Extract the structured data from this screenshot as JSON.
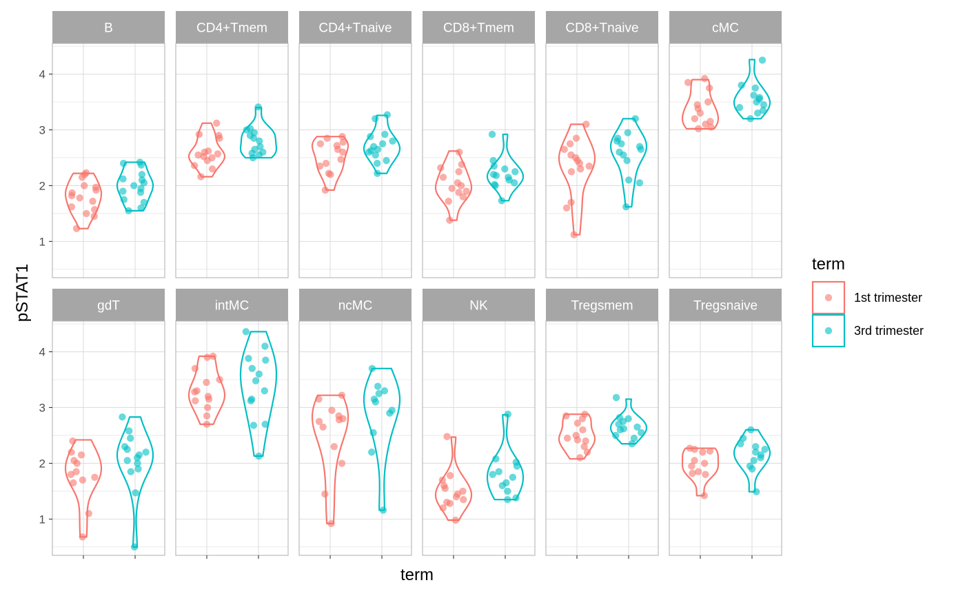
{
  "chart_data": {
    "type": "violin",
    "facet_layout": {
      "rows": 2,
      "cols": 6
    },
    "xlabel": "term",
    "ylabel": "pSTAT1",
    "ylim": [
      0.35,
      4.55
    ],
    "y_ticks": [
      1,
      2,
      3,
      4
    ],
    "grid": true,
    "legend": {
      "title": "term",
      "position": "right",
      "entries": [
        {
          "label": "1st trimester",
          "color": "#F8766D"
        },
        {
          "label": "3rd trimester",
          "color": "#00BFC4"
        }
      ]
    },
    "colors": {
      "first": "#F8766D",
      "third": "#00BFC4",
      "strip": "#A6A6A6",
      "grid": "#DEDEDE",
      "border": "#B3B3B3"
    },
    "panels": [
      {
        "name": "B",
        "first": {
          "range": [
            1.23,
            2.22
          ],
          "points": [
            1.23,
            1.45,
            1.5,
            1.57,
            1.62,
            1.72,
            1.78,
            1.82,
            1.87,
            1.92,
            1.97,
            2.0,
            2.15,
            2.2,
            2.23
          ]
        },
        "third": {
          "range": [
            1.55,
            2.42
          ],
          "points": [
            1.55,
            1.6,
            1.7,
            1.75,
            1.88,
            1.9,
            1.95,
            2.0,
            2.05,
            2.1,
            2.12,
            2.2,
            2.37,
            2.4,
            2.42
          ]
        }
      },
      {
        "name": "CD4+Tmem",
        "first": {
          "range": [
            2.16,
            3.12
          ],
          "points": [
            2.16,
            2.3,
            2.36,
            2.45,
            2.5,
            2.52,
            2.55,
            2.57,
            2.6,
            2.62,
            2.85,
            2.9,
            2.92,
            3.12
          ]
        },
        "third": {
          "range": [
            2.5,
            3.4
          ],
          "points": [
            2.5,
            2.55,
            2.58,
            2.6,
            2.65,
            2.7,
            2.8,
            2.85,
            2.9,
            2.95,
            3.0,
            3.02,
            3.41
          ]
        }
      },
      {
        "name": "CD4+Tnaive",
        "first": {
          "range": [
            1.92,
            2.88
          ],
          "points": [
            1.92,
            2.2,
            2.22,
            2.35,
            2.4,
            2.47,
            2.6,
            2.65,
            2.72,
            2.75,
            2.78,
            2.85,
            2.88
          ]
        },
        "third": {
          "range": [
            2.22,
            3.26
          ],
          "points": [
            2.22,
            2.4,
            2.45,
            2.55,
            2.6,
            2.63,
            2.65,
            2.7,
            2.75,
            2.8,
            2.88,
            2.92,
            3.2,
            3.27
          ]
        }
      },
      {
        "name": "CD8+Tmem",
        "first": {
          "range": [
            1.38,
            2.62
          ],
          "points": [
            1.38,
            1.72,
            1.8,
            1.88,
            1.9,
            1.95,
            2.0,
            2.05,
            2.15,
            2.25,
            2.32,
            2.38,
            2.6
          ]
        },
        "third": {
          "range": [
            1.73,
            2.92
          ],
          "points": [
            1.73,
            2.0,
            2.02,
            2.05,
            2.1,
            2.15,
            2.18,
            2.2,
            2.25,
            2.3,
            2.35,
            2.45,
            2.92
          ]
        }
      },
      {
        "name": "CD8+Tnaive",
        "first": {
          "range": [
            1.12,
            3.1
          ],
          "points": [
            1.12,
            1.6,
            1.7,
            2.25,
            2.3,
            2.35,
            2.4,
            2.45,
            2.5,
            2.55,
            2.65,
            2.75,
            2.85,
            3.1
          ]
        },
        "third": {
          "range": [
            1.62,
            3.2
          ],
          "points": [
            1.62,
            2.05,
            2.1,
            2.45,
            2.55,
            2.6,
            2.65,
            2.7,
            2.75,
            2.8,
            2.85,
            2.95,
            3.2
          ]
        }
      },
      {
        "name": "cMC",
        "first": {
          "range": [
            3.02,
            3.9
          ],
          "points": [
            3.02,
            3.05,
            3.1,
            3.15,
            3.2,
            3.3,
            3.38,
            3.45,
            3.5,
            3.75,
            3.85,
            3.92
          ]
        },
        "third": {
          "range": [
            3.2,
            4.26
          ],
          "points": [
            3.2,
            3.3,
            3.35,
            3.4,
            3.45,
            3.5,
            3.55,
            3.58,
            3.62,
            3.75,
            3.8,
            4.25
          ]
        }
      },
      {
        "name": "gdT",
        "first": {
          "range": [
            0.68,
            2.42
          ],
          "points": [
            0.68,
            1.1,
            1.65,
            1.7,
            1.75,
            1.8,
            1.85,
            2.0,
            2.05,
            2.15,
            2.2,
            2.4
          ]
        },
        "third": {
          "range": [
            0.5,
            2.83
          ],
          "points": [
            0.5,
            1.47,
            1.85,
            1.9,
            2.0,
            2.05,
            2.1,
            2.15,
            2.2,
            2.25,
            2.3,
            2.45,
            2.58,
            2.83
          ]
        }
      },
      {
        "name": "intMC",
        "first": {
          "range": [
            2.7,
            3.92
          ],
          "points": [
            2.7,
            2.85,
            3.0,
            3.12,
            3.15,
            3.2,
            3.28,
            3.3,
            3.45,
            3.5,
            3.7,
            3.9,
            3.92
          ]
        },
        "third": {
          "range": [
            2.13,
            4.36
          ],
          "points": [
            2.13,
            2.68,
            2.7,
            3.12,
            3.15,
            3.3,
            3.48,
            3.6,
            3.7,
            3.85,
            3.88,
            4.1,
            4.36
          ]
        }
      },
      {
        "name": "ncMC",
        "first": {
          "range": [
            0.92,
            3.22
          ],
          "points": [
            0.92,
            1.45,
            2.0,
            2.3,
            2.65,
            2.75,
            2.78,
            2.8,
            2.85,
            2.95,
            3.15,
            3.22
          ]
        },
        "third": {
          "range": [
            1.16,
            3.7
          ],
          "points": [
            1.16,
            2.2,
            2.55,
            2.9,
            2.95,
            3.1,
            3.15,
            3.25,
            3.3,
            3.38,
            3.7
          ]
        }
      },
      {
        "name": "NK",
        "first": {
          "range": [
            0.98,
            2.47
          ],
          "points": [
            0.98,
            1.2,
            1.28,
            1.3,
            1.35,
            1.4,
            1.45,
            1.5,
            1.55,
            1.6,
            1.7,
            1.78,
            2.48
          ]
        },
        "third": {
          "range": [
            1.35,
            2.87
          ],
          "points": [
            1.35,
            1.38,
            1.5,
            1.6,
            1.65,
            1.75,
            1.8,
            1.85,
            1.95,
            2.02,
            2.08,
            2.88
          ]
        }
      },
      {
        "name": "Tregsmem",
        "first": {
          "range": [
            2.08,
            2.88
          ],
          "points": [
            2.1,
            2.2,
            2.3,
            2.4,
            2.42,
            2.45,
            2.5,
            2.6,
            2.72,
            2.8,
            2.85,
            2.88
          ]
        },
        "third": {
          "range": [
            2.35,
            3.15
          ],
          "points": [
            2.35,
            2.45,
            2.5,
            2.55,
            2.6,
            2.62,
            2.65,
            2.7,
            2.75,
            2.8,
            2.82,
            3.18
          ]
        }
      },
      {
        "name": "Tregsnaive",
        "first": {
          "range": [
            1.42,
            2.27
          ],
          "points": [
            1.42,
            1.8,
            1.82,
            1.85,
            1.95,
            2.0,
            2.05,
            2.2,
            2.22,
            2.25,
            2.27
          ]
        },
        "third": {
          "range": [
            1.49,
            2.6
          ],
          "points": [
            1.49,
            1.9,
            1.95,
            2.05,
            2.1,
            2.15,
            2.2,
            2.25,
            2.3,
            2.35,
            2.45,
            2.6
          ]
        }
      }
    ]
  }
}
